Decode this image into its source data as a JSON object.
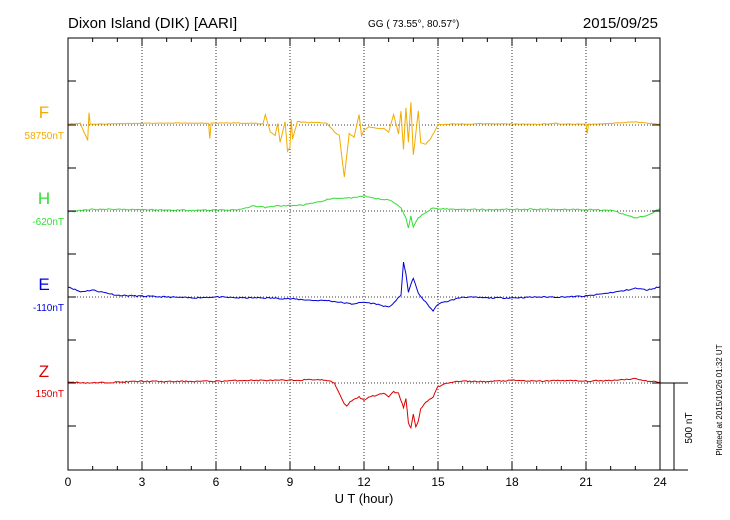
{
  "header": {
    "station": "Dixon Island (DIK)  [AARI]",
    "coords": "GG ( 73.55°,  80.57°)",
    "date": "2015/09/25"
  },
  "side_note": "Plotted at 2015/10/26 01:32 UT",
  "scale_bar_label": "500 nT",
  "chart_data": {
    "type": "line",
    "title": "",
    "xlabel": "U T (hour)",
    "xlim": [
      0,
      24
    ],
    "xticks": [
      0,
      3,
      6,
      9,
      12,
      15,
      18,
      21,
      24
    ],
    "grid": true,
    "grid_style": "dotted",
    "scale_bar_nT": 500,
    "series": [
      {
        "name": "F",
        "baseline_label": "58750nT",
        "color": "#f2ac00",
        "x": [
          0,
          0.5,
          0.8,
          0.85,
          0.9,
          1.5,
          2,
          3,
          4,
          5,
          5.7,
          5.75,
          5.8,
          6.5,
          7.5,
          7.9,
          8.0,
          8.2,
          8.4,
          8.5,
          8.6,
          8.8,
          8.9,
          9.0,
          9.05,
          9.1,
          9.3,
          9.6,
          10,
          10.5,
          10.8,
          11.0,
          11.2,
          11.4,
          11.6,
          11.8,
          11.9,
          12.0,
          12.2,
          12.5,
          12.8,
          13.0,
          13.2,
          13.4,
          13.5,
          13.6,
          13.7,
          13.8,
          13.9,
          14.0,
          14.1,
          14.2,
          14.3,
          14.5,
          14.7,
          15.0,
          15.3,
          16,
          17,
          18,
          19,
          19.5,
          19.7,
          20,
          21,
          21.05,
          21.1,
          22,
          22.5,
          23,
          23.5,
          24
        ],
        "values": [
          5,
          10,
          -90,
          70,
          5,
          5,
          8,
          10,
          12,
          10,
          10,
          -80,
          10,
          12,
          10,
          5,
          60,
          -40,
          -60,
          10,
          -100,
          20,
          -150,
          -130,
          30,
          -80,
          20,
          15,
          15,
          10,
          -40,
          -60,
          -300,
          -50,
          -70,
          60,
          -60,
          -30,
          -10,
          -20,
          -20,
          -40,
          60,
          -50,
          80,
          -140,
          100,
          -100,
          130,
          -170,
          -50,
          80,
          -100,
          -110,
          -80,
          0,
          5,
          5,
          8,
          5,
          5,
          5,
          10,
          5,
          5,
          -50,
          5,
          8,
          15,
          18,
          10,
          5
        ]
      },
      {
        "name": "H",
        "baseline_label": "-620nT",
        "color": "#33dd33",
        "x": [
          0,
          1,
          2,
          3,
          4,
          5,
          6,
          7,
          7.5,
          8,
          8.5,
          9,
          9.5,
          10,
          10.5,
          11,
          11.5,
          12,
          12.5,
          13,
          13.3,
          13.5,
          13.7,
          13.8,
          13.9,
          14.0,
          14.2,
          14.5,
          14.8,
          15,
          15.5,
          16,
          17,
          18,
          19,
          20,
          21,
          22,
          23,
          23.5,
          24
        ],
        "values": [
          -5,
          10,
          10,
          8,
          5,
          5,
          5,
          8,
          30,
          20,
          30,
          30,
          35,
          45,
          65,
          75,
          75,
          85,
          70,
          65,
          40,
          20,
          -40,
          -100,
          -30,
          -90,
          -40,
          -10,
          20,
          15,
          10,
          10,
          8,
          10,
          10,
          10,
          8,
          5,
          -40,
          -25,
          15
        ]
      },
      {
        "name": "E",
        "baseline_label": "-110nT",
        "color": "#0000dd",
        "x": [
          0,
          0.5,
          1,
          2,
          3,
          4,
          5,
          6,
          7,
          8,
          9,
          10,
          10.5,
          11,
          11.5,
          12,
          12.5,
          13,
          13.3,
          13.5,
          13.6,
          13.7,
          13.8,
          13.9,
          14.0,
          14.2,
          14.5,
          14.8,
          15,
          16,
          17,
          18,
          19,
          20,
          21,
          22,
          22.5,
          23,
          23.5,
          24
        ],
        "values": [
          60,
          30,
          40,
          10,
          5,
          0,
          -5,
          0,
          -5,
          -5,
          -10,
          -20,
          -20,
          -30,
          -40,
          -30,
          -40,
          -60,
          -20,
          10,
          200,
          130,
          30,
          70,
          110,
          20,
          -30,
          -80,
          -40,
          0,
          -5,
          -5,
          0,
          0,
          5,
          25,
          35,
          50,
          40,
          60
        ]
      },
      {
        "name": "Z",
        "baseline_label": "150nT",
        "color": "#dd0000",
        "x": [
          0,
          1,
          2,
          3,
          4,
          5,
          6,
          7,
          8,
          9,
          10,
          10.5,
          10.8,
          11,
          11.2,
          11.3,
          11.5,
          11.8,
          12,
          12.2,
          12.5,
          12.8,
          13,
          13.2,
          13.4,
          13.5,
          13.6,
          13.7,
          13.8,
          13.9,
          14.0,
          14.1,
          14.2,
          14.3,
          14.5,
          14.8,
          15,
          15.5,
          16,
          17,
          18,
          19,
          20,
          21,
          22,
          22.5,
          23,
          23.5,
          24
        ],
        "values": [
          5,
          0,
          5,
          10,
          8,
          10,
          10,
          15,
          15,
          15,
          20,
          15,
          0,
          -60,
          -120,
          -130,
          -100,
          -80,
          -100,
          -80,
          -70,
          -60,
          -80,
          -50,
          -60,
          -100,
          -140,
          -90,
          -230,
          -260,
          -180,
          -250,
          -220,
          -150,
          -110,
          -80,
          -20,
          5,
          10,
          8,
          15,
          10,
          15,
          10,
          15,
          20,
          25,
          10,
          5
        ]
      }
    ]
  }
}
